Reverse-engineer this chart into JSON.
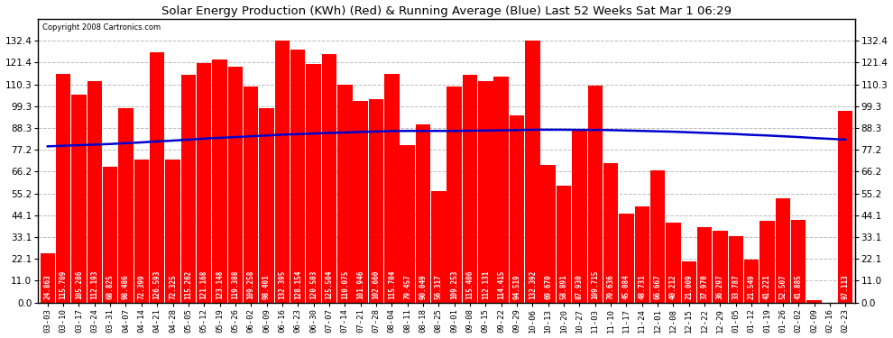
{
  "title": "Solar Energy Production (KWh) (Red) & Running Average (Blue) Last 52 Weeks Sat Mar 1 06:29",
  "copyright": "Copyright 2008 Cartronics.com",
  "bar_color": "#ff0000",
  "avg_line_color": "#0000cc",
  "bg_color": "#ffffff",
  "grid_color": "#bbbbbb",
  "ylim_min": 0.0,
  "ylim_max": 143.4,
  "yticks": [
    0.0,
    11.0,
    22.1,
    33.1,
    44.1,
    55.2,
    66.2,
    77.2,
    88.3,
    99.3,
    110.3,
    121.4,
    132.4
  ],
  "categories": [
    "03-03",
    "03-10",
    "03-17",
    "03-24",
    "03-31",
    "04-07",
    "04-14",
    "04-21",
    "04-28",
    "05-05",
    "05-12",
    "05-19",
    "05-26",
    "06-02",
    "06-09",
    "06-16",
    "06-23",
    "06-30",
    "07-07",
    "07-14",
    "07-21",
    "07-28",
    "08-04",
    "08-11",
    "08-18",
    "08-25",
    "09-01",
    "09-08",
    "09-15",
    "09-22",
    "09-29",
    "10-06",
    "10-13",
    "10-20",
    "10-27",
    "11-03",
    "11-10",
    "11-17",
    "11-24",
    "12-01",
    "12-08",
    "12-15",
    "12-22",
    "12-29",
    "01-05",
    "01-12",
    "01-19",
    "01-26",
    "02-02",
    "02-09",
    "02-16",
    "02-23"
  ],
  "values": [
    24.863,
    115.709,
    105.286,
    112.193,
    68.825,
    98.486,
    72.399,
    126.593,
    72.325,
    115.262,
    121.168,
    123.148,
    119.388,
    109.258,
    98.401,
    132.395,
    128.154,
    120.503,
    125.504,
    110.075,
    101.946,
    102.66,
    115.704,
    79.457,
    90.049,
    56.317,
    109.253,
    115.406,
    112.131,
    114.415,
    94.519,
    132.392,
    69.67,
    58.891,
    87.93,
    109.715,
    70.636,
    45.084,
    48.731,
    66.667,
    40.212,
    21.009,
    37.97,
    36.297,
    33.787,
    21.549,
    41.221,
    52.507,
    41.885,
    1.413,
    0.0,
    97.113
  ],
  "running_avg": [
    79.0,
    79.3,
    79.6,
    79.9,
    80.2,
    80.6,
    81.0,
    81.5,
    81.9,
    82.4,
    82.9,
    83.3,
    83.7,
    84.1,
    84.5,
    84.9,
    85.2,
    85.5,
    85.8,
    86.0,
    86.3,
    86.5,
    86.7,
    86.8,
    86.8,
    86.8,
    86.8,
    86.9,
    87.0,
    87.1,
    87.2,
    87.4,
    87.4,
    87.4,
    87.3,
    87.3,
    87.2,
    87.0,
    86.8,
    86.6,
    86.4,
    86.1,
    85.8,
    85.5,
    85.2,
    84.8,
    84.5,
    84.1,
    83.7,
    83.2,
    82.8,
    82.4
  ],
  "label_fontsize": 5.5,
  "xlabel_fontsize": 6.5,
  "ylabel_fontsize": 7.5,
  "title_fontsize": 9.5,
  "copyright_fontsize": 6.0
}
